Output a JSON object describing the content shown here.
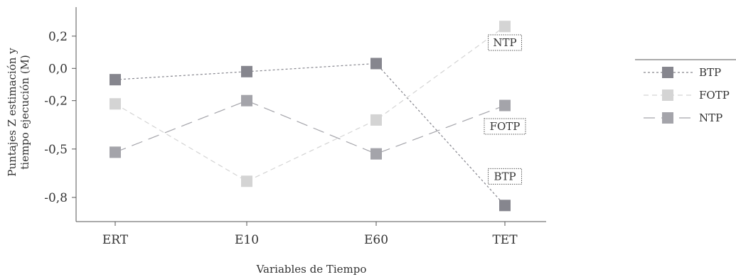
{
  "chart_data": {
    "type": "line",
    "xlabel": "Variables de Tiempo",
    "ylabel_lines": [
      "Puntajes Z estimación y",
      "tiempo ejecución (M)"
    ],
    "categories": [
      "ERT",
      "E10",
      "E60",
      "TET"
    ],
    "yticks": [
      {
        "value": 0.2,
        "label": "0,2"
      },
      {
        "value": 0.0,
        "label": "0,0"
      },
      {
        "value": -0.2,
        "label": "-0,2"
      },
      {
        "value": -0.5,
        "label": "-0,5"
      },
      {
        "value": -0.8,
        "label": "-0,8"
      }
    ],
    "ylim": [
      -0.95,
      0.38
    ],
    "series": [
      {
        "name": "BTP",
        "values": [
          -0.07,
          -0.02,
          0.03,
          -0.85
        ],
        "color": "#86868e",
        "dash": "3,3"
      },
      {
        "name": "FOTP",
        "values": [
          -0.22,
          -0.7,
          -0.32,
          0.26
        ],
        "color": "#d4d4d4",
        "dash": "7,5"
      },
      {
        "name": "NTP",
        "values": [
          -0.52,
          -0.2,
          -0.53,
          -0.23
        ],
        "color": "#a4a4aa",
        "dash": "16,9"
      }
    ],
    "callouts": [
      {
        "text": "NTP",
        "category": "TET",
        "value": 0.16
      },
      {
        "text": "FOTP",
        "category": "TET",
        "value": -0.36
      },
      {
        "text": "BTP",
        "category": "TET",
        "value": -0.67
      }
    ],
    "legend_position": "right"
  }
}
